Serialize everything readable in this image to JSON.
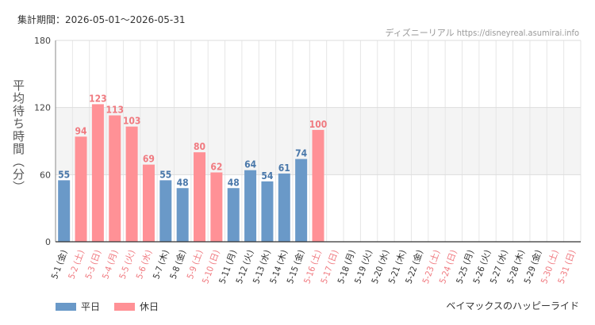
{
  "header": {
    "period": "集計期間：2026-05-01～2026-05-31",
    "source": "ディズニーリアル https://disneyreal.asumirai.info"
  },
  "footer": {
    "attraction": "ベイマックスのハッピーライド"
  },
  "colors": {
    "weekday": "#6a99c8",
    "holiday": "#ff9196",
    "weekday_text": "#4a78aa",
    "holiday_text": "#f07a80",
    "band": "#f4f4f4",
    "grid": "#e6e6e6"
  },
  "chart_data": {
    "type": "bar",
    "ylabel": "平均待ち時間（分）",
    "ylim": [
      0,
      180
    ],
    "yticks": [
      0,
      60,
      120,
      180
    ],
    "legend": [
      {
        "name": "平日",
        "key": "weekday"
      },
      {
        "name": "休日",
        "key": "holiday"
      }
    ],
    "categories": [
      "5-1 (金)",
      "5-2 (土)",
      "5-3 (日)",
      "5-4 (月)",
      "5-5 (火)",
      "5-6 (水)",
      "5-7 (木)",
      "5-8 (金)",
      "5-9 (土)",
      "5-10 (日)",
      "5-11 (月)",
      "5-12 (火)",
      "5-13 (水)",
      "5-14 (木)",
      "5-15 (金)",
      "5-16 (土)",
      "5-17 (日)",
      "5-18 (月)",
      "5-19 (火)",
      "5-20 (水)",
      "5-21 (木)",
      "5-22 (金)",
      "5-23 (土)",
      "5-24 (日)",
      "5-25 (月)",
      "5-26 (火)",
      "5-27 (水)",
      "5-28 (木)",
      "5-29 (金)",
      "5-30 (土)",
      "5-31 (日)"
    ],
    "day_type": [
      "weekday",
      "holiday",
      "holiday",
      "holiday",
      "holiday",
      "holiday",
      "weekday",
      "weekday",
      "holiday",
      "holiday",
      "weekday",
      "weekday",
      "weekday",
      "weekday",
      "weekday",
      "holiday",
      "holiday",
      "weekday",
      "weekday",
      "weekday",
      "weekday",
      "weekday",
      "holiday",
      "holiday",
      "weekday",
      "weekday",
      "weekday",
      "weekday",
      "weekday",
      "holiday",
      "holiday"
    ],
    "values": [
      55,
      94,
      123,
      113,
      103,
      69,
      55,
      48,
      80,
      62,
      48,
      64,
      54,
      61,
      74,
      100,
      null,
      null,
      null,
      null,
      null,
      null,
      null,
      null,
      null,
      null,
      null,
      null,
      null,
      null,
      null
    ]
  }
}
